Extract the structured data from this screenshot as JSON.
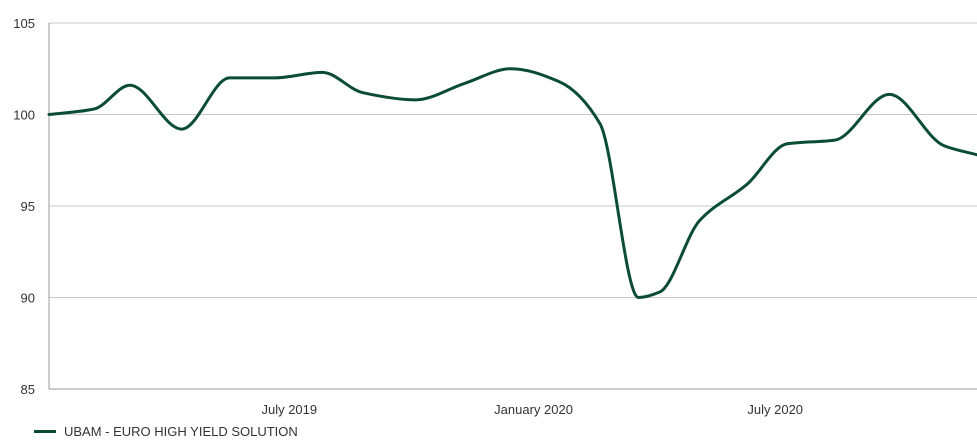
{
  "chart_data": {
    "type": "line",
    "title": "",
    "xlabel": "",
    "ylabel": "",
    "ylim": [
      85,
      105
    ],
    "yticks": [
      85,
      90,
      95,
      100,
      105
    ],
    "xlim": [
      "2019-01-01",
      "2020-11-30"
    ],
    "xticks": [
      {
        "date": "2019-07-01",
        "label": "July 2019"
      },
      {
        "date": "2020-01-01",
        "label": "January 2020"
      },
      {
        "date": "2020-07-01",
        "label": "July 2020"
      }
    ],
    "grid": "horizontal",
    "legend": "bottom-left",
    "colors": {
      "series": "#0b4d32",
      "grid": "#c8c8c8",
      "axis": "#9a9a9a"
    },
    "series": [
      {
        "name": "UBAM - EURO HIGH YIELD SOLUTION",
        "x": [
          "2019-01-01",
          "2019-02-04",
          "2019-03-03",
          "2019-04-11",
          "2019-05-17",
          "2019-06-20",
          "2019-07-26",
          "2019-08-25",
          "2019-10-04",
          "2019-11-10",
          "2019-12-15",
          "2020-01-20",
          "2020-02-20",
          "2020-03-20",
          "2020-04-05",
          "2020-05-05",
          "2020-06-10",
          "2020-07-10",
          "2020-08-15",
          "2020-09-25",
          "2020-11-05",
          "2020-11-30"
        ],
        "y": [
          100.0,
          100.3,
          101.6,
          99.2,
          102.0,
          102.0,
          102.3,
          101.2,
          100.8,
          101.7,
          102.5,
          101.8,
          99.5,
          90.0,
          90.3,
          94.2,
          96.2,
          98.4,
          98.6,
          101.1,
          98.3,
          97.8
        ]
      }
    ]
  }
}
